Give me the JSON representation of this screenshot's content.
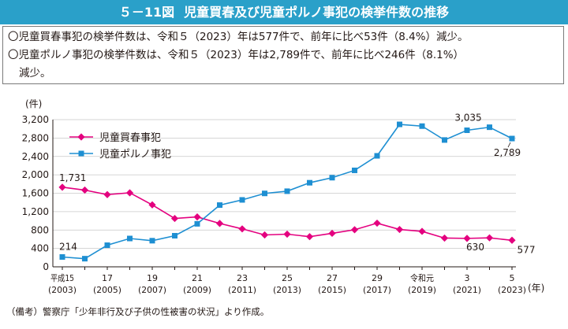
{
  "header": {
    "figure_number": "５－11図",
    "title": "児童買春及び児童ポルノ事犯の検挙件数の推移"
  },
  "summary": {
    "line1": "〇児童買春事犯の検挙件数は、令和５（2023）年は577件で、前年に比べ53件（8.4%）減少。",
    "line2a": "〇児童ポルノ事犯の検挙件数は、令和５（2023）年は2,789件で、前年に比べ246件（8.1%）",
    "line2b": "減少。"
  },
  "note": "（備考）警察庁「少年非行及び子供の性被害の状況」より作成。",
  "chart_data": {
    "type": "line",
    "ylabel": "(件)",
    "xlabel": "(年)",
    "ylim": [
      0,
      3200
    ],
    "yticks": [
      "0",
      "400",
      "800",
      "1,200",
      "1,600",
      "2,000",
      "2,400",
      "2,800",
      "3,200"
    ],
    "grid": true,
    "legend_position": "top-left",
    "x": [
      2003,
      2004,
      2005,
      2006,
      2007,
      2008,
      2009,
      2010,
      2011,
      2012,
      2013,
      2014,
      2015,
      2016,
      2017,
      2018,
      2019,
      2020,
      2021,
      2022,
      2023
    ],
    "xtick_labels": [
      {
        "top": "平成15",
        "bottom": "(2003)"
      },
      {
        "top": "",
        "bottom": ""
      },
      {
        "top": "17",
        "bottom": "(2005)"
      },
      {
        "top": "",
        "bottom": ""
      },
      {
        "top": "19",
        "bottom": "(2007)"
      },
      {
        "top": "",
        "bottom": ""
      },
      {
        "top": "21",
        "bottom": "(2009)"
      },
      {
        "top": "",
        "bottom": ""
      },
      {
        "top": "23",
        "bottom": "(2011)"
      },
      {
        "top": "",
        "bottom": ""
      },
      {
        "top": "25",
        "bottom": "(2013)"
      },
      {
        "top": "",
        "bottom": ""
      },
      {
        "top": "27",
        "bottom": "(2015)"
      },
      {
        "top": "",
        "bottom": ""
      },
      {
        "top": "29",
        "bottom": "(2017)"
      },
      {
        "top": "",
        "bottom": ""
      },
      {
        "top": "令和元",
        "bottom": "(2019)"
      },
      {
        "top": "",
        "bottom": ""
      },
      {
        "top": "3",
        "bottom": "(2021)"
      },
      {
        "top": "",
        "bottom": ""
      },
      {
        "top": "5",
        "bottom": "(2023)"
      }
    ],
    "series": [
      {
        "name": "児童買春事犯",
        "color": "#e4007f",
        "marker": "diamond",
        "values": [
          1731,
          1668,
          1570,
          1609,
          1347,
          1051,
          1085,
          943,
          825,
          693,
          710,
          656,
          728,
          806,
          949,
          812,
          771,
          625,
          618,
          630,
          577
        ]
      },
      {
        "name": "児童ポルノ事犯",
        "color": "#1e8fd2",
        "marker": "square",
        "values": [
          214,
          177,
          470,
          616,
          568,
          676,
          935,
          1342,
          1455,
          1596,
          1644,
          1828,
          1938,
          2097,
          2413,
          3097,
          3059,
          2757,
          2969,
          3035,
          2789
        ]
      }
    ],
    "data_labels": [
      {
        "series": 0,
        "index": 0,
        "text": "1,731"
      },
      {
        "series": 1,
        "index": 0,
        "text": "214"
      },
      {
        "series": 0,
        "index": 19,
        "text": "630"
      },
      {
        "series": 0,
        "index": 20,
        "text": "577"
      },
      {
        "series": 1,
        "index": 19,
        "text": "3,035"
      },
      {
        "series": 1,
        "index": 20,
        "text": "2,789"
      }
    ]
  }
}
